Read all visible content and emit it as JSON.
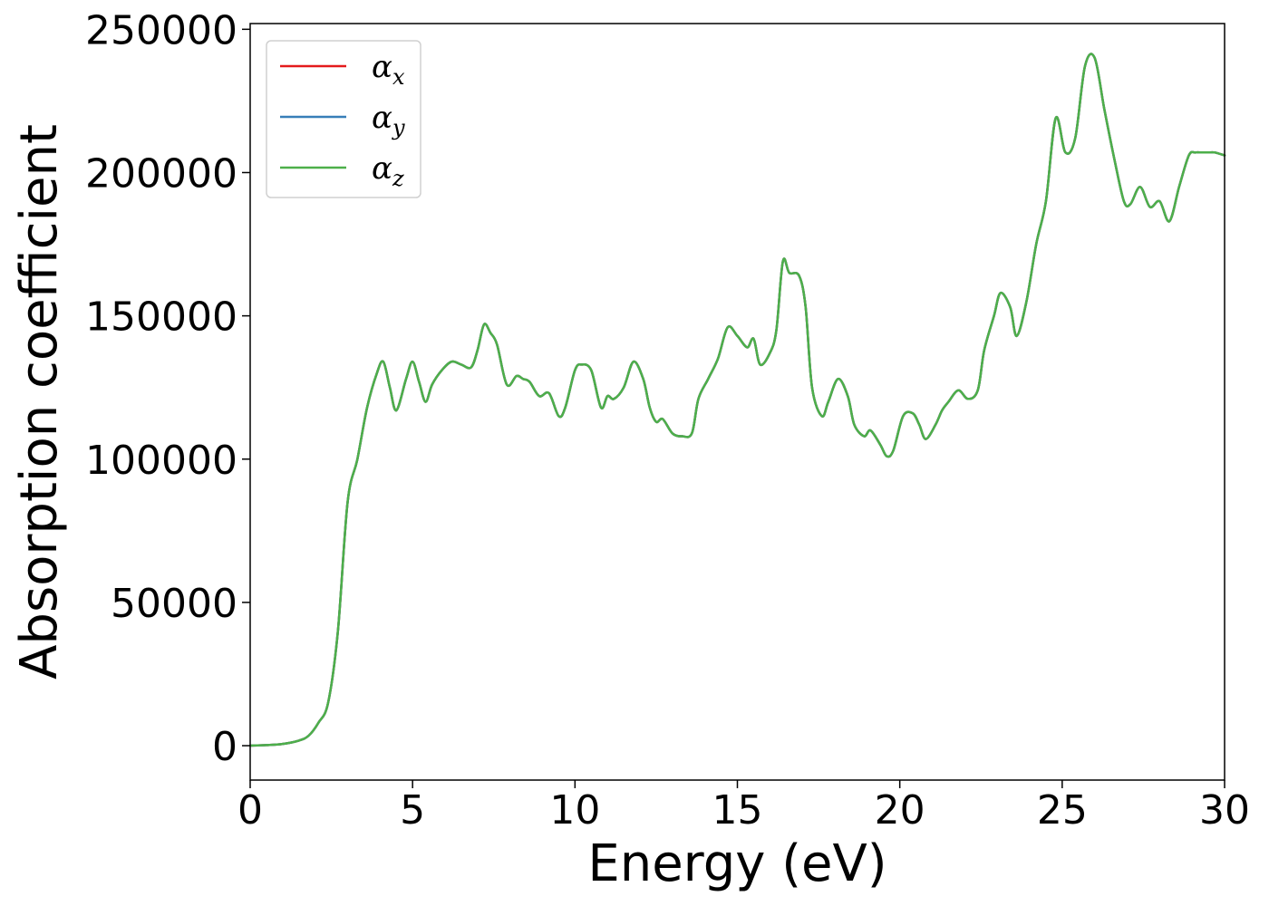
{
  "chart_data": {
    "type": "line",
    "title": "",
    "xlabel": "Energy (eV)",
    "ylabel": "Absorption coefficient",
    "xlim": [
      0,
      30
    ],
    "ylim": [
      -12000,
      252000
    ],
    "grid": false,
    "legend_position": "upper-left",
    "xticks": [
      0,
      5,
      10,
      15,
      20,
      25,
      30
    ],
    "yticks": [
      0,
      50000,
      100000,
      150000,
      200000,
      250000
    ],
    "series": [
      {
        "name": "α_x",
        "symbol": "α",
        "subscript": "x",
        "color": "#e41a1c"
      },
      {
        "name": "α_y",
        "symbol": "α",
        "subscript": "y",
        "color": "#377eb8"
      },
      {
        "name": "α_z",
        "symbol": "α",
        "subscript": "z",
        "color": "#4daf4a"
      }
    ],
    "x": [
      0,
      0.5,
      1.0,
      1.5,
      1.8,
      2.1,
      2.4,
      2.7,
      3.0,
      3.3,
      3.6,
      3.9,
      4.1,
      4.3,
      4.5,
      4.8,
      5.0,
      5.2,
      5.4,
      5.6,
      5.9,
      6.2,
      6.5,
      6.8,
      7.0,
      7.2,
      7.4,
      7.6,
      7.9,
      8.2,
      8.4,
      8.6,
      8.9,
      9.2,
      9.5,
      9.7,
      10.0,
      10.2,
      10.5,
      10.8,
      11.0,
      11.2,
      11.5,
      11.8,
      12.1,
      12.3,
      12.5,
      12.7,
      13.0,
      13.3,
      13.6,
      13.8,
      14.1,
      14.4,
      14.7,
      15.0,
      15.3,
      15.5,
      15.7,
      16.0,
      16.2,
      16.4,
      16.6,
      16.9,
      17.1,
      17.3,
      17.6,
      17.8,
      18.1,
      18.4,
      18.6,
      18.9,
      19.1,
      19.4,
      19.6,
      19.8,
      20.1,
      20.4,
      20.6,
      20.8,
      21.1,
      21.3,
      21.5,
      21.8,
      22.1,
      22.4,
      22.6,
      22.9,
      23.1,
      23.4,
      23.6,
      23.9,
      24.2,
      24.5,
      24.8,
      25.1,
      25.4,
      25.7,
      26.0,
      26.3,
      26.6,
      26.9,
      27.1,
      27.4,
      27.7,
      28.0,
      28.3,
      28.6,
      28.9,
      29.1,
      29.3,
      29.5,
      29.7,
      30.0
    ],
    "y": [
      0,
      200,
      600,
      1800,
      3500,
      8000,
      15000,
      40000,
      85000,
      100000,
      118000,
      130000,
      134000,
      125000,
      117000,
      128000,
      134000,
      127000,
      120000,
      126000,
      131000,
      134000,
      133000,
      132000,
      138000,
      147000,
      144000,
      140000,
      126000,
      129000,
      128000,
      127000,
      122000,
      123000,
      115000,
      118000,
      131000,
      133000,
      131000,
      118000,
      122000,
      121000,
      125000,
      134000,
      128000,
      118000,
      113000,
      114000,
      109000,
      108000,
      109000,
      121000,
      128000,
      135000,
      146000,
      143000,
      139000,
      142000,
      133000,
      137000,
      145000,
      169000,
      165000,
      164000,
      153000,
      125000,
      115000,
      120000,
      128000,
      122000,
      112000,
      108000,
      110000,
      105000,
      101000,
      103000,
      115000,
      116000,
      112000,
      107000,
      112000,
      117000,
      120000,
      124000,
      121000,
      124000,
      138000,
      150000,
      158000,
      153000,
      143000,
      155000,
      175000,
      190000,
      219000,
      207000,
      212000,
      237000,
      240000,
      222000,
      205000,
      190000,
      189000,
      195000,
      188000,
      190000,
      183000,
      195000,
      206000,
      207000,
      207000,
      207000,
      207000,
      206000
    ]
  }
}
